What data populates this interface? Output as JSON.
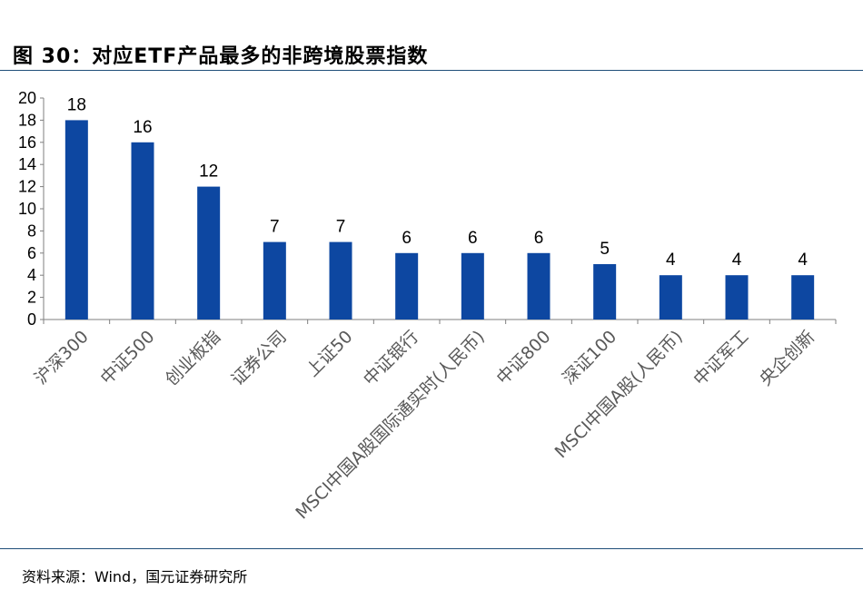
{
  "title": "图 30：对应ETF产品最多的非跨境股票指数",
  "source": "资料来源：Wind，国元证券研究所",
  "colors": {
    "bar": "#0d47a1",
    "axis": "#7f7f7f",
    "rule": "#1f4e79"
  },
  "chart_data": {
    "type": "bar",
    "categories": [
      "沪深300",
      "中证500",
      "创业板指",
      "证券公司",
      "上证50",
      "中证银行",
      "MSCI中国A股国际通实时(人民币)",
      "中证800",
      "深证100",
      "MSCI中国A股(人民币)",
      "中证军工",
      "央企创新"
    ],
    "values": [
      18,
      16,
      12,
      7,
      7,
      6,
      6,
      6,
      5,
      4,
      4,
      4
    ],
    "ylim": [
      0,
      20
    ],
    "yticks": [
      0,
      2,
      4,
      6,
      8,
      10,
      12,
      14,
      16,
      18,
      20
    ],
    "grid": false,
    "data_labels": true
  }
}
